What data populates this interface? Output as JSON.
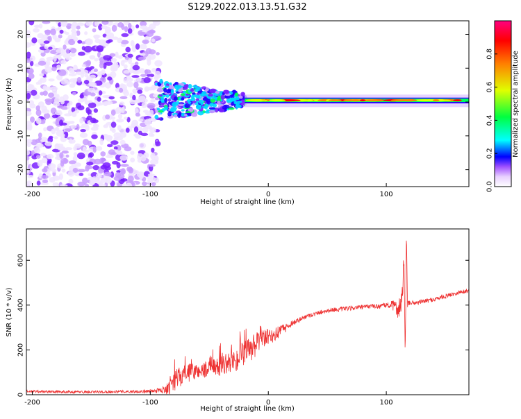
{
  "title": "S129.2022.013.13.51.G32",
  "chart_data": [
    {
      "type": "heatmap",
      "xlabel": "Height of straight line (km)",
      "ylabel": "Frequency (Hz)",
      "xlim": [
        -205,
        170
      ],
      "ylim": [
        -25,
        24
      ],
      "xticks": [
        -200,
        -100,
        0,
        100
      ],
      "yticks": [
        -20,
        -10,
        0,
        10,
        20
      ],
      "colorbar": {
        "label": "Normalized spectral amplitude",
        "range": [
          0,
          1
        ],
        "ticks": [
          0.0,
          0.2,
          0.4,
          0.6,
          0.8
        ],
        "colormap": [
          "#ffffff",
          "#e8d0ff",
          "#7000ff",
          "#0000ff",
          "#00ffff",
          "#00ff00",
          "#ffff00",
          "#ff0000",
          "#ff0080"
        ]
      },
      "regions": [
        {
          "x_range": [
            -205,
            -95
          ],
          "description_values": {
            "freq_spread_hz": [
              -25,
              24
            ],
            "amplitude": [
              0.0,
              0.1
            ]
          }
        },
        {
          "x_range": [
            -95,
            -20
          ],
          "description_values": {
            "freq_spread_hz": [
              -6,
              6
            ],
            "amplitude": [
              0.1,
              0.4
            ]
          }
        },
        {
          "x_range": [
            -20,
            170
          ],
          "description_values": {
            "freq_center_hz": 0.5,
            "freq_spread_hz": [
              -1.5,
              2
            ],
            "amplitude": [
              0.5,
              1.0
            ]
          }
        }
      ]
    },
    {
      "type": "line",
      "xlabel": "Height of straight line (km)",
      "ylabel": "SNR (10 * v/v)",
      "xlim": [
        -205,
        170
      ],
      "ylim": [
        0,
        740
      ],
      "xticks": [
        -200,
        -100,
        0,
        100
      ],
      "yticks": [
        0,
        200,
        400,
        600
      ],
      "color": "#ee3333",
      "series": [
        {
          "x": [
            -205,
            -180,
            -150,
            -120,
            -100,
            -90,
            -85,
            -80,
            -75,
            -70,
            -65,
            -60,
            -55,
            -50,
            -45,
            -40,
            -35,
            -30,
            -25,
            -20,
            -15,
            -10,
            -5,
            0,
            5,
            10,
            15,
            20,
            25,
            30,
            35,
            40,
            45,
            50,
            55,
            60,
            65,
            70,
            75,
            80,
            85,
            90,
            95,
            100,
            105,
            108,
            110,
            112,
            114,
            115,
            116,
            117,
            118,
            120,
            125,
            130,
            140,
            150,
            160,
            170
          ],
          "y": [
            15,
            13,
            12,
            14,
            15,
            20,
            35,
            60,
            80,
            95,
            100,
            105,
            110,
            115,
            120,
            130,
            140,
            150,
            165,
            180,
            200,
            225,
            245,
            255,
            265,
            285,
            300,
            320,
            330,
            345,
            355,
            360,
            370,
            375,
            380,
            380,
            385,
            385,
            390,
            390,
            395,
            395,
            395,
            400,
            400,
            390,
            380,
            400,
            450,
            620,
            120,
            730,
            400,
            410,
            410,
            415,
            425,
            440,
            455,
            465
          ],
          "noise": [
            6,
            6,
            6,
            6,
            8,
            12,
            35,
            45,
            45,
            40,
            40,
            35,
            35,
            40,
            40,
            45,
            45,
            55,
            60,
            60,
            60,
            55,
            45,
            40,
            30,
            25,
            20,
            15,
            12,
            10,
            10,
            10,
            10,
            10,
            10,
            10,
            10,
            10,
            10,
            10,
            10,
            10,
            12,
            12,
            20,
            30,
            40,
            60,
            80,
            60,
            40,
            40,
            20,
            10,
            10,
            10,
            10,
            10,
            10,
            10
          ]
        }
      ]
    }
  ]
}
